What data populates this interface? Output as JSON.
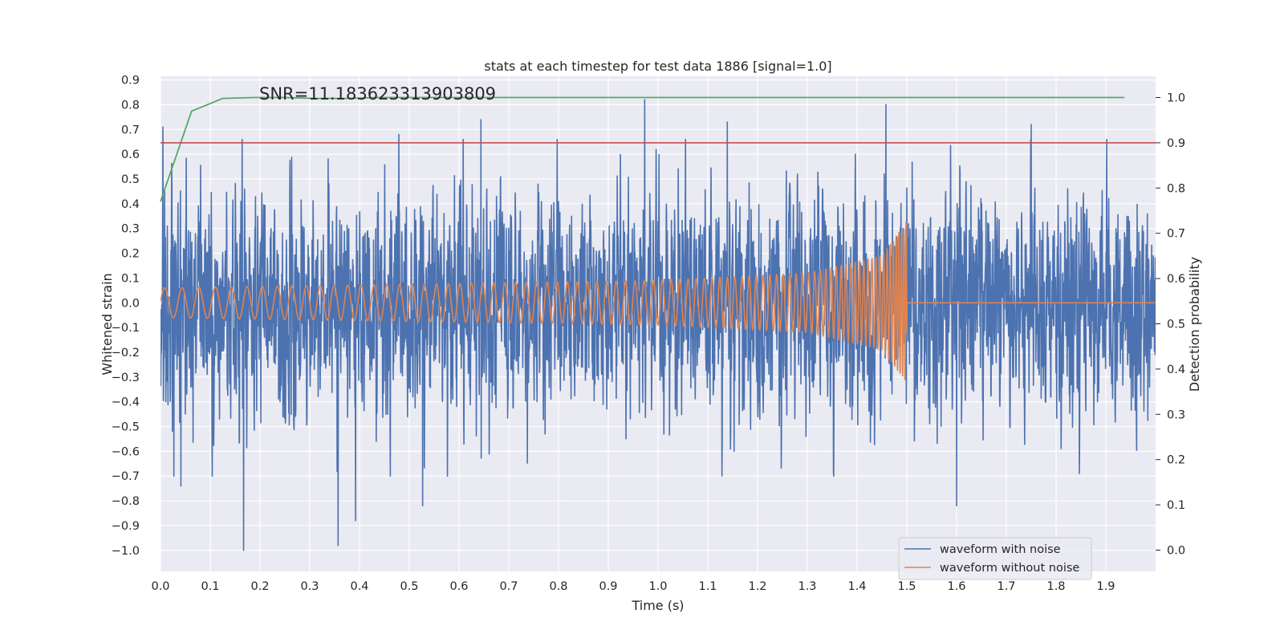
{
  "chart_data": {
    "type": "line",
    "title": "stats at each timestep for test data 1886 [signal=1.0]",
    "annotation": "SNR=11.183623313903809",
    "xlabel": "Time (s)",
    "ylabel": "Whitened strain",
    "ylabel_right": "Detection probability",
    "xlim": [
      0.0,
      2.0
    ],
    "ylim": [
      -1.085,
      0.915
    ],
    "ylim_right": [
      -0.047,
      1.047
    ],
    "x_ticks": [
      "0.0",
      "0.1",
      "0.2",
      "0.3",
      "0.4",
      "0.5",
      "0.6",
      "0.7",
      "0.8",
      "0.9",
      "1.0",
      "1.1",
      "1.2",
      "1.3",
      "1.4",
      "1.5",
      "1.6",
      "1.7",
      "1.8",
      "1.9"
    ],
    "y_ticks": [
      "0.9",
      "0.8",
      "0.7",
      "0.6",
      "0.5",
      "0.4",
      "0.3",
      "0.2",
      "0.1",
      "0.0",
      "−0.1",
      "−0.2",
      "−0.3",
      "−0.4",
      "−0.5",
      "−0.6",
      "−0.7",
      "−0.8",
      "−0.9",
      "−1.0"
    ],
    "y_ticks_right": [
      "0.0",
      "0.1",
      "0.2",
      "0.3",
      "0.4",
      "0.5",
      "0.6",
      "0.7",
      "0.8",
      "0.9",
      "1.0"
    ],
    "grid": true,
    "legend_position": "lower-right",
    "series": [
      {
        "name": "waveform with noise",
        "color": "#4c72b0",
        "axis": "left",
        "generator": "noise",
        "sample_rate": 2048,
        "rms": 0.22,
        "peaks": [
          [
            0.005,
            0.71
          ],
          [
            0.027,
            -0.7
          ],
          [
            0.041,
            -0.74
          ],
          [
            0.167,
            -1.0
          ],
          [
            0.357,
            -0.98
          ],
          [
            0.392,
            -0.88
          ],
          [
            0.479,
            0.68
          ],
          [
            0.527,
            -0.82
          ],
          [
            0.644,
            0.74
          ],
          [
            0.973,
            0.82
          ],
          [
            1.139,
            0.73
          ],
          [
            1.458,
            0.8
          ],
          [
            1.6,
            -0.82
          ],
          [
            1.75,
            0.72
          ]
        ]
      },
      {
        "name": "waveform without noise",
        "color": "#dd8452",
        "axis": "left",
        "generator": "chirp",
        "sample_rate": 2048,
        "merger_time": 1.5,
        "chirp_points": [
          {
            "t": 0.0,
            "amplitude": 0.06,
            "frequency": 28
          },
          {
            "t": 0.5,
            "amplitude": 0.075,
            "frequency": 40
          },
          {
            "t": 1.0,
            "amplitude": 0.09,
            "frequency": 55
          },
          {
            "t": 1.3,
            "amplitude": 0.12,
            "frequency": 80
          },
          {
            "t": 1.45,
            "amplitude": 0.19,
            "frequency": 130
          },
          {
            "t": 1.5,
            "amplitude": 0.33,
            "frequency": 220
          }
        ]
      },
      {
        "name": "detection probability",
        "color": "#55a868",
        "axis": "right",
        "x": [
          0.0,
          0.0625,
          0.125,
          0.1875,
          0.25,
          0.3125,
          0.375,
          0.4375,
          0.5,
          0.5625,
          0.625,
          0.6875,
          0.75,
          0.8125,
          0.875,
          0.9375,
          1.0,
          1.0625,
          1.125,
          1.1875,
          1.25,
          1.3125,
          1.375,
          1.4375,
          1.5,
          1.5625,
          1.625,
          1.6875,
          1.75,
          1.8125,
          1.875,
          1.9375
        ],
        "values": [
          0.77,
          0.97,
          0.998,
          1.0,
          1.0,
          0.998,
          0.998,
          1.0,
          1.0,
          1.0,
          1.0,
          1.0,
          1.0,
          1.0,
          1.0,
          1.0,
          1.0,
          1.0,
          1.0,
          1.0,
          1.0,
          1.0,
          1.0,
          1.0,
          1.0,
          1.0,
          1.0,
          1.0,
          1.0,
          1.0,
          1.0,
          1.0
        ]
      },
      {
        "name": "threshold",
        "color": "#c44e52",
        "axis": "right",
        "constant": 0.9
      }
    ]
  }
}
